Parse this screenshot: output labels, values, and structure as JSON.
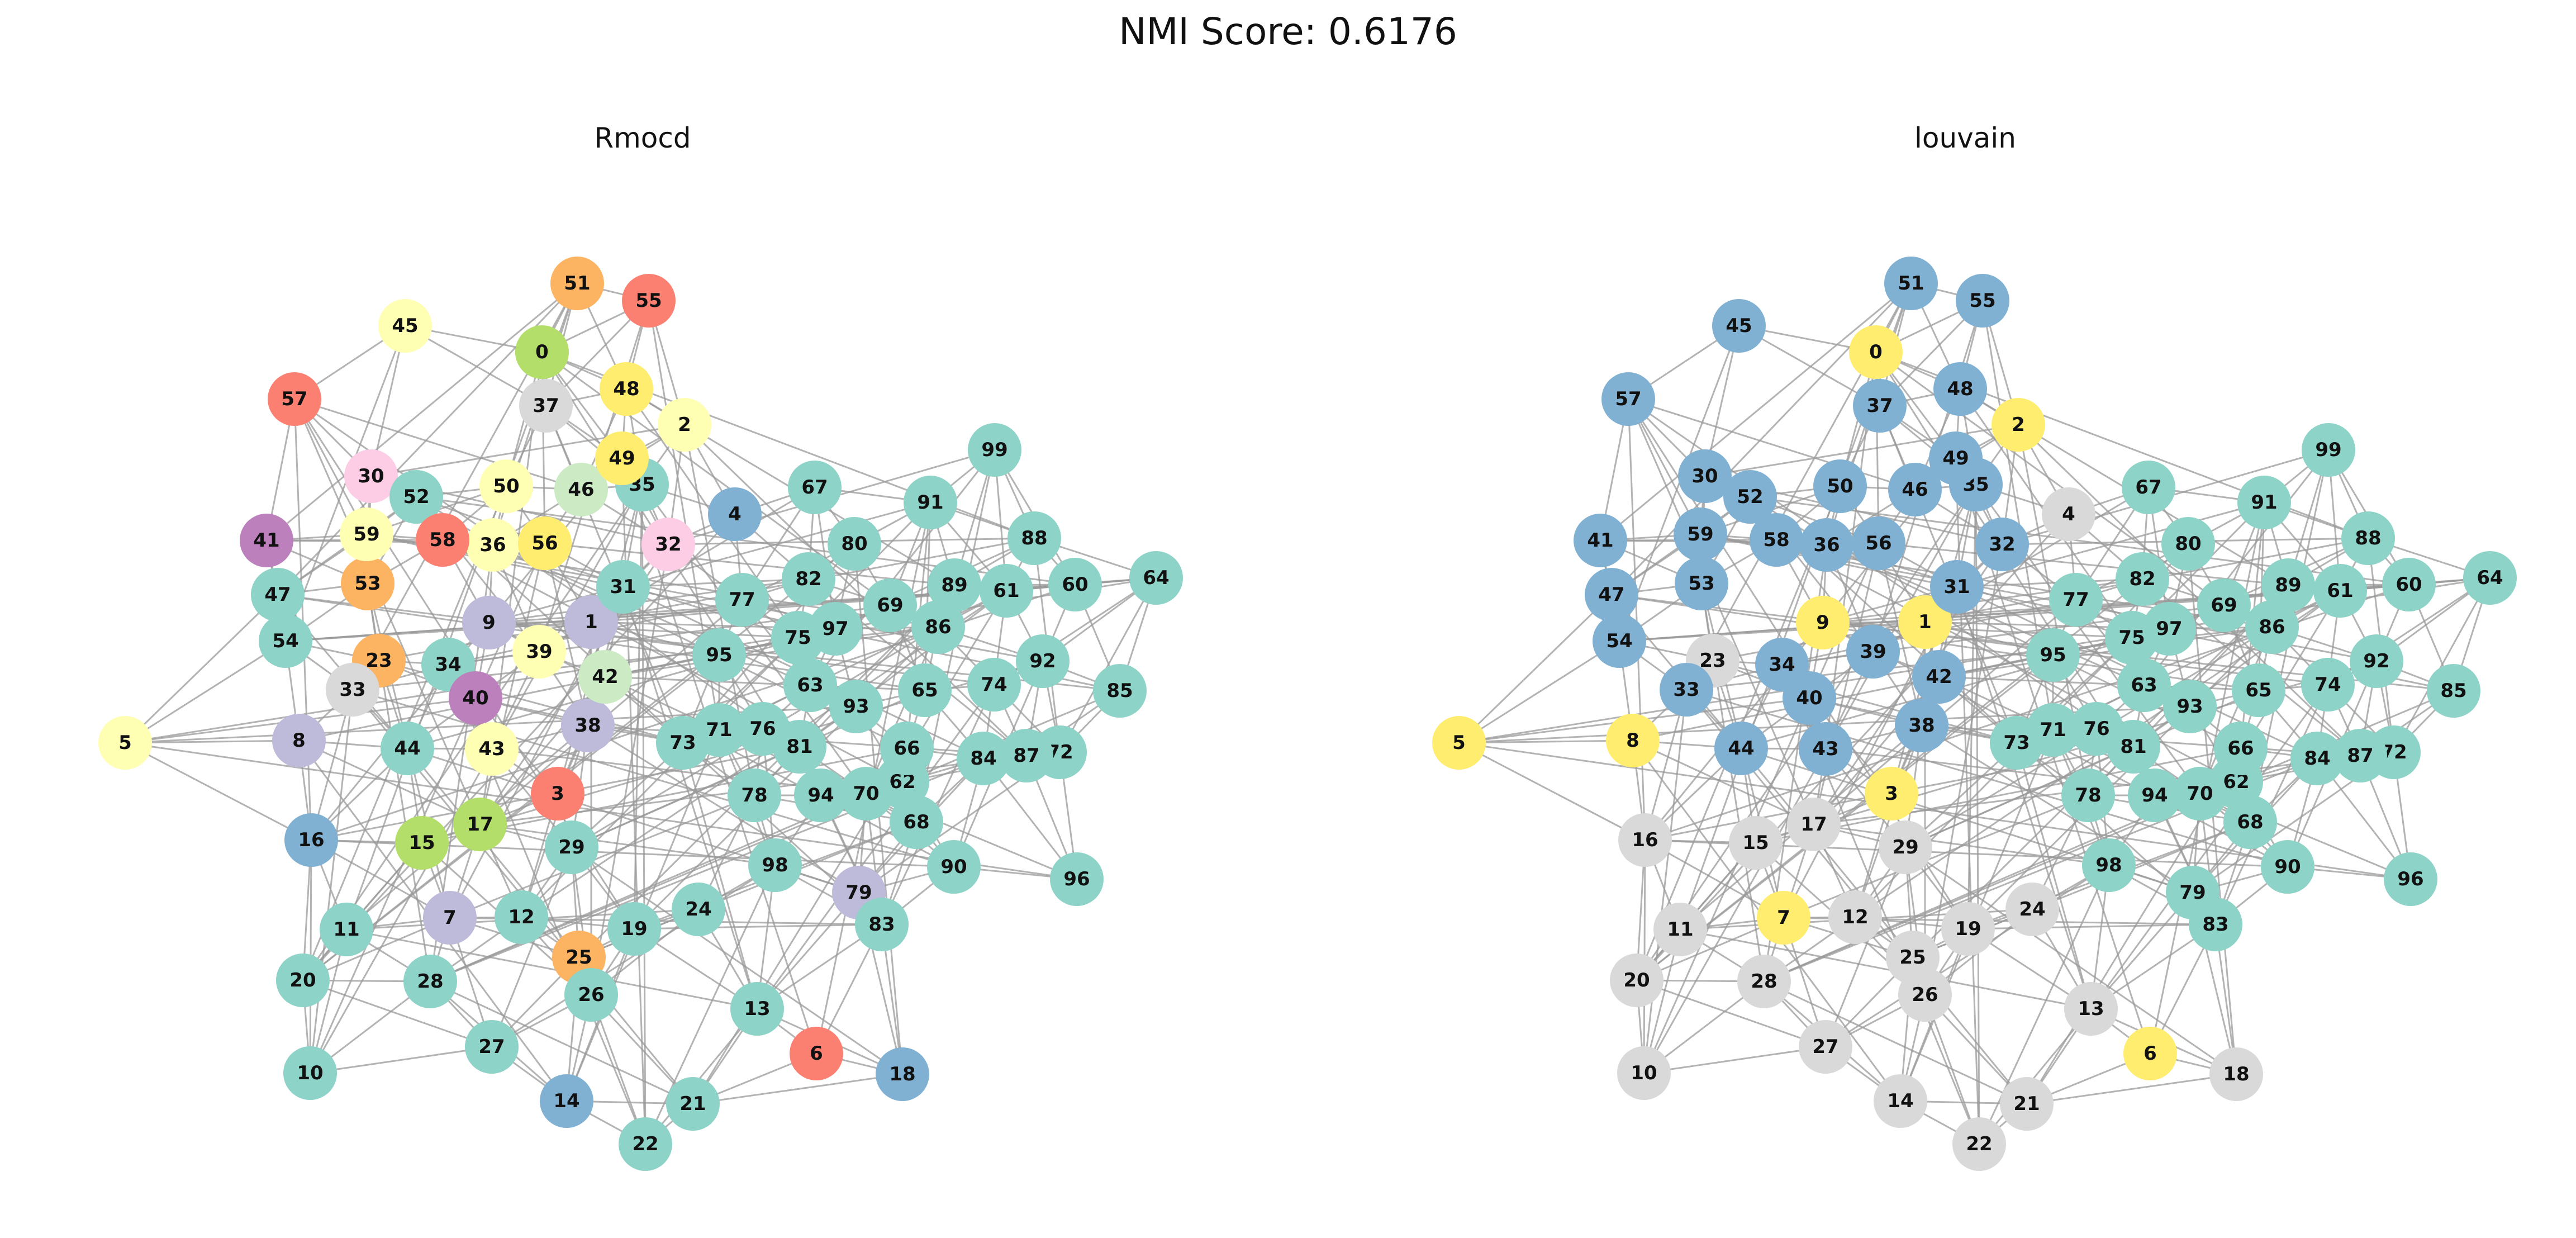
{
  "title": "NMI Score: 0.6176",
  "panels": [
    {
      "name": "rmocd",
      "title": "Rmocd"
    },
    {
      "name": "louvain",
      "title": "louvain"
    }
  ],
  "palette": {
    "teal": "#8dd3c7",
    "yellow": "#ffed6f",
    "lightyellow": "#ffffb3",
    "gray": "#d9d9d9",
    "blue": "#80b1d3",
    "salmon": "#fb8072",
    "orange": "#fdb462",
    "lime": "#b3de69",
    "lavender": "#bebada",
    "purple": "#bc80bd",
    "pink": "#fccde5",
    "mint": "#ccebc5",
    "edge": "#999999"
  },
  "nodes": [
    {
      "id": "0",
      "rmocd": "lime",
      "louvain": "yellow"
    },
    {
      "id": "1",
      "rmocd": "lavender",
      "louvain": "yellow"
    },
    {
      "id": "2",
      "rmocd": "lightyellow",
      "louvain": "yellow"
    },
    {
      "id": "3",
      "rmocd": "salmon",
      "louvain": "yellow"
    },
    {
      "id": "4",
      "rmocd": "blue",
      "louvain": "gray"
    },
    {
      "id": "5",
      "rmocd": "lightyellow",
      "louvain": "yellow"
    },
    {
      "id": "6",
      "rmocd": "salmon",
      "louvain": "yellow"
    },
    {
      "id": "7",
      "rmocd": "lavender",
      "louvain": "yellow"
    },
    {
      "id": "8",
      "rmocd": "lavender",
      "louvain": "yellow"
    },
    {
      "id": "9",
      "rmocd": "lavender",
      "louvain": "yellow"
    },
    {
      "id": "10",
      "rmocd": "teal",
      "louvain": "gray"
    },
    {
      "id": "11",
      "rmocd": "teal",
      "louvain": "gray"
    },
    {
      "id": "12",
      "rmocd": "teal",
      "louvain": "gray"
    },
    {
      "id": "13",
      "rmocd": "teal",
      "louvain": "gray"
    },
    {
      "id": "14",
      "rmocd": "blue",
      "louvain": "gray"
    },
    {
      "id": "15",
      "rmocd": "lime",
      "louvain": "gray"
    },
    {
      "id": "16",
      "rmocd": "blue",
      "louvain": "gray"
    },
    {
      "id": "17",
      "rmocd": "lime",
      "louvain": "gray"
    },
    {
      "id": "18",
      "rmocd": "blue",
      "louvain": "gray"
    },
    {
      "id": "19",
      "rmocd": "teal",
      "louvain": "gray"
    },
    {
      "id": "20",
      "rmocd": "teal",
      "louvain": "gray"
    },
    {
      "id": "21",
      "rmocd": "teal",
      "louvain": "gray"
    },
    {
      "id": "22",
      "rmocd": "teal",
      "louvain": "gray"
    },
    {
      "id": "23",
      "rmocd": "orange",
      "louvain": "gray"
    },
    {
      "id": "24",
      "rmocd": "teal",
      "louvain": "gray"
    },
    {
      "id": "25",
      "rmocd": "orange",
      "louvain": "gray"
    },
    {
      "id": "26",
      "rmocd": "teal",
      "louvain": "gray"
    },
    {
      "id": "27",
      "rmocd": "teal",
      "louvain": "gray"
    },
    {
      "id": "28",
      "rmocd": "teal",
      "louvain": "gray"
    },
    {
      "id": "29",
      "rmocd": "teal",
      "louvain": "gray"
    },
    {
      "id": "30",
      "rmocd": "pink",
      "louvain": "blue"
    },
    {
      "id": "31",
      "rmocd": "teal",
      "louvain": "blue"
    },
    {
      "id": "32",
      "rmocd": "pink",
      "louvain": "blue"
    },
    {
      "id": "33",
      "rmocd": "gray",
      "louvain": "blue"
    },
    {
      "id": "34",
      "rmocd": "teal",
      "louvain": "blue"
    },
    {
      "id": "35",
      "rmocd": "teal",
      "louvain": "blue"
    },
    {
      "id": "36",
      "rmocd": "lightyellow",
      "louvain": "blue"
    },
    {
      "id": "37",
      "rmocd": "gray",
      "louvain": "blue"
    },
    {
      "id": "38",
      "rmocd": "lavender",
      "louvain": "blue"
    },
    {
      "id": "39",
      "rmocd": "lightyellow",
      "louvain": "blue"
    },
    {
      "id": "40",
      "rmocd": "purple",
      "louvain": "blue"
    },
    {
      "id": "41",
      "rmocd": "purple",
      "louvain": "blue"
    },
    {
      "id": "42",
      "rmocd": "mint",
      "louvain": "blue"
    },
    {
      "id": "43",
      "rmocd": "lightyellow",
      "louvain": "blue"
    },
    {
      "id": "44",
      "rmocd": "teal",
      "louvain": "blue"
    },
    {
      "id": "45",
      "rmocd": "lightyellow",
      "louvain": "blue"
    },
    {
      "id": "46",
      "rmocd": "mint",
      "louvain": "blue"
    },
    {
      "id": "47",
      "rmocd": "teal",
      "louvain": "blue"
    },
    {
      "id": "48",
      "rmocd": "yellow",
      "louvain": "blue"
    },
    {
      "id": "49",
      "rmocd": "yellow",
      "louvain": "blue"
    },
    {
      "id": "50",
      "rmocd": "lightyellow",
      "louvain": "blue"
    },
    {
      "id": "51",
      "rmocd": "orange",
      "louvain": "blue"
    },
    {
      "id": "52",
      "rmocd": "teal",
      "louvain": "blue"
    },
    {
      "id": "53",
      "rmocd": "orange",
      "louvain": "blue"
    },
    {
      "id": "54",
      "rmocd": "teal",
      "louvain": "blue"
    },
    {
      "id": "55",
      "rmocd": "salmon",
      "louvain": "blue"
    },
    {
      "id": "56",
      "rmocd": "yellow",
      "louvain": "blue"
    },
    {
      "id": "57",
      "rmocd": "salmon",
      "louvain": "blue"
    },
    {
      "id": "58",
      "rmocd": "salmon",
      "louvain": "blue"
    },
    {
      "id": "59",
      "rmocd": "lightyellow",
      "louvain": "blue"
    },
    {
      "id": "60",
      "rmocd": "teal",
      "louvain": "teal"
    },
    {
      "id": "61",
      "rmocd": "teal",
      "louvain": "teal"
    },
    {
      "id": "62",
      "rmocd": "teal",
      "louvain": "teal"
    },
    {
      "id": "63",
      "rmocd": "teal",
      "louvain": "teal"
    },
    {
      "id": "64",
      "rmocd": "teal",
      "louvain": "teal"
    },
    {
      "id": "65",
      "rmocd": "teal",
      "louvain": "teal"
    },
    {
      "id": "66",
      "rmocd": "teal",
      "louvain": "teal"
    },
    {
      "id": "67",
      "rmocd": "teal",
      "louvain": "teal"
    },
    {
      "id": "68",
      "rmocd": "teal",
      "louvain": "teal"
    },
    {
      "id": "69",
      "rmocd": "teal",
      "louvain": "teal"
    },
    {
      "id": "70",
      "rmocd": "teal",
      "louvain": "teal"
    },
    {
      "id": "71",
      "rmocd": "teal",
      "louvain": "teal"
    },
    {
      "id": "72",
      "rmocd": "teal",
      "louvain": "teal"
    },
    {
      "id": "73",
      "rmocd": "teal",
      "louvain": "teal"
    },
    {
      "id": "74",
      "rmocd": "teal",
      "louvain": "teal"
    },
    {
      "id": "75",
      "rmocd": "teal",
      "louvain": "teal"
    },
    {
      "id": "76",
      "rmocd": "teal",
      "louvain": "teal"
    },
    {
      "id": "77",
      "rmocd": "teal",
      "louvain": "teal"
    },
    {
      "id": "78",
      "rmocd": "teal",
      "louvain": "teal"
    },
    {
      "id": "79",
      "rmocd": "lavender",
      "louvain": "teal"
    },
    {
      "id": "80",
      "rmocd": "teal",
      "louvain": "teal"
    },
    {
      "id": "81",
      "rmocd": "teal",
      "louvain": "teal"
    },
    {
      "id": "82",
      "rmocd": "teal",
      "louvain": "teal"
    },
    {
      "id": "83",
      "rmocd": "teal",
      "louvain": "teal"
    },
    {
      "id": "84",
      "rmocd": "teal",
      "louvain": "teal"
    },
    {
      "id": "85",
      "rmocd": "teal",
      "louvain": "teal"
    },
    {
      "id": "86",
      "rmocd": "teal",
      "louvain": "teal"
    },
    {
      "id": "87",
      "rmocd": "teal",
      "louvain": "teal"
    },
    {
      "id": "88",
      "rmocd": "teal",
      "louvain": "teal"
    },
    {
      "id": "89",
      "rmocd": "teal",
      "louvain": "teal"
    },
    {
      "id": "90",
      "rmocd": "teal",
      "louvain": "teal"
    },
    {
      "id": "91",
      "rmocd": "teal",
      "louvain": "teal"
    },
    {
      "id": "92",
      "rmocd": "teal",
      "louvain": "teal"
    },
    {
      "id": "93",
      "rmocd": "teal",
      "louvain": "teal"
    },
    {
      "id": "94",
      "rmocd": "teal",
      "louvain": "teal"
    },
    {
      "id": "95",
      "rmocd": "teal",
      "louvain": "teal"
    },
    {
      "id": "96",
      "rmocd": "teal",
      "louvain": "teal"
    },
    {
      "id": "97",
      "rmocd": "teal",
      "louvain": "teal"
    },
    {
      "id": "98",
      "rmocd": "teal",
      "louvain": "teal"
    },
    {
      "id": "99",
      "rmocd": "teal",
      "louvain": "teal"
    }
  ]
}
